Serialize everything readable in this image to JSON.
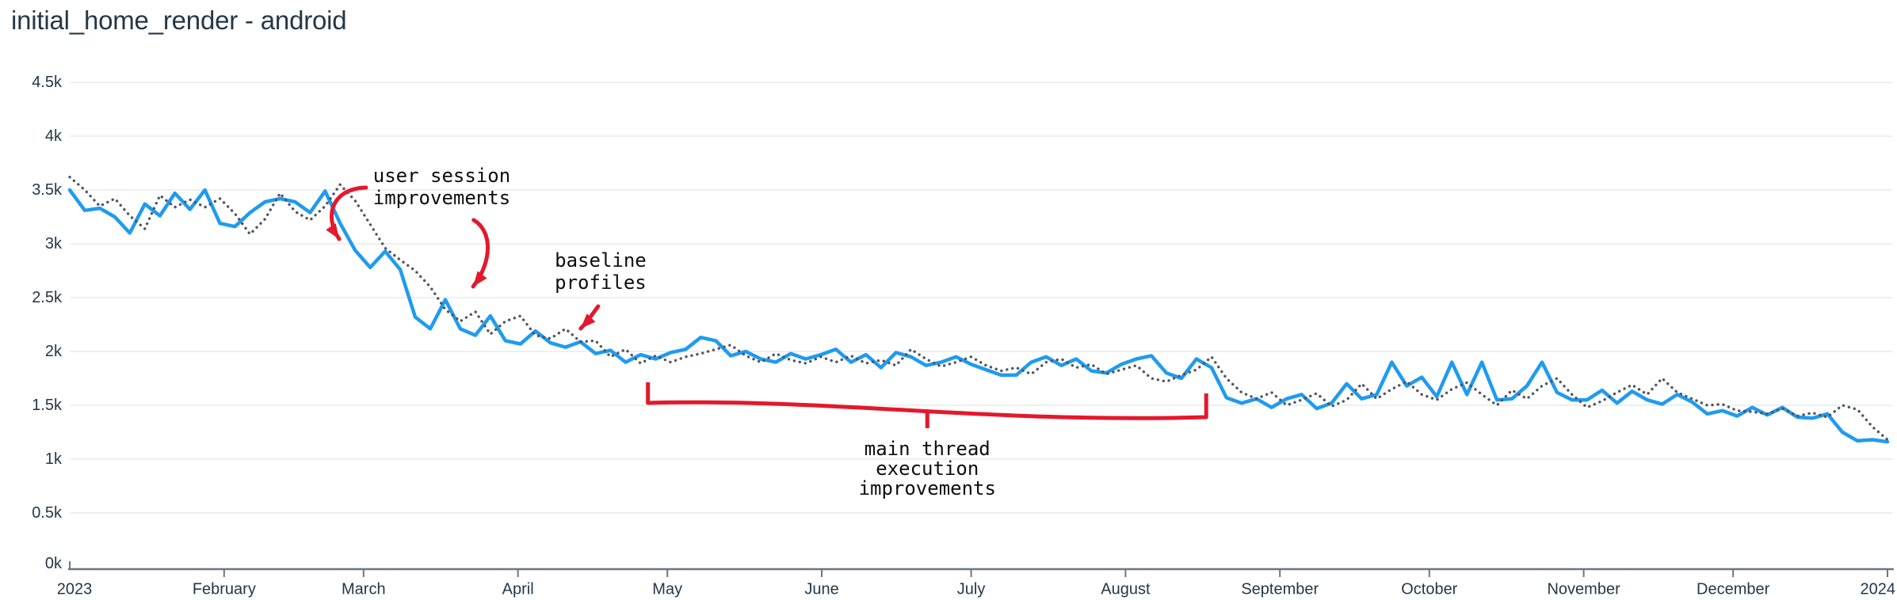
{
  "title": "initial_home_render - android",
  "colors": {
    "title_text": "#253746",
    "axis_label_text": "#243746",
    "gridline": "#e8eaec",
    "axis_line": "#6b7683",
    "solid_line": "#1f9bf0",
    "dotted_line": "#515560",
    "annotation_red": "#e4182c",
    "annotation_text": "#0d0d0d",
    "background": "#ffffff"
  },
  "chart_data": {
    "type": "line",
    "title": "initial_home_render - android",
    "x_axis": {
      "start_label": "2023",
      "end_label": "2024",
      "ticks": [
        {
          "label": "2023",
          "day": 0
        },
        {
          "label": "February",
          "day": 31
        },
        {
          "label": "March",
          "day": 59
        },
        {
          "label": "April",
          "day": 90
        },
        {
          "label": "May",
          "day": 120
        },
        {
          "label": "June",
          "day": 151
        },
        {
          "label": "July",
          "day": 181
        },
        {
          "label": "August",
          "day": 212
        },
        {
          "label": "September",
          "day": 243
        },
        {
          "label": "October",
          "day": 273
        },
        {
          "label": "November",
          "day": 304
        },
        {
          "label": "December",
          "day": 334
        },
        {
          "label": "2024",
          "day": 365
        }
      ]
    },
    "y_axis": {
      "range": [
        0,
        4500
      ],
      "ticks": [
        {
          "label": "4.5k",
          "value": 4500
        },
        {
          "label": "4k",
          "value": 4000
        },
        {
          "label": "3.5k",
          "value": 3500
        },
        {
          "label": "3k",
          "value": 3000
        },
        {
          "label": "2.5k",
          "value": 2500
        },
        {
          "label": "2k",
          "value": 2000
        },
        {
          "label": "1.5k",
          "value": 1500
        },
        {
          "label": "1k",
          "value": 1000
        },
        {
          "label": "0.5k",
          "value": 500
        },
        {
          "label": "0k",
          "value": 0
        }
      ],
      "grid": true
    },
    "legend": "none",
    "sampling": {
      "points": 122,
      "span_days": 365
    },
    "series": [
      {
        "id": "solid-blue-line",
        "style": "solid",
        "color": "#1f9bf0",
        "values": [
          3500,
          3310,
          3330,
          3250,
          3100,
          3370,
          3260,
          3470,
          3320,
          3500,
          3190,
          3160,
          3290,
          3390,
          3420,
          3390,
          3290,
          3490,
          3190,
          2940,
          2780,
          2930,
          2760,
          2320,
          2210,
          2480,
          2210,
          2150,
          2330,
          2100,
          2070,
          2190,
          2080,
          2040,
          2090,
          1980,
          2010,
          1900,
          1970,
          1930,
          1990,
          2020,
          2130,
          2100,
          1960,
          2000,
          1930,
          1900,
          1980,
          1930,
          1970,
          2020,
          1900,
          1970,
          1850,
          1990,
          1950,
          1870,
          1900,
          1950,
          1880,
          1830,
          1780,
          1780,
          1900,
          1950,
          1870,
          1930,
          1820,
          1800,
          1880,
          1930,
          1960,
          1800,
          1750,
          1930,
          1850,
          1570,
          1520,
          1560,
          1480,
          1560,
          1600,
          1470,
          1520,
          1700,
          1560,
          1600,
          1900,
          1680,
          1760,
          1580,
          1900,
          1600,
          1900,
          1550,
          1560,
          1680,
          1900,
          1620,
          1550,
          1550,
          1640,
          1520,
          1630,
          1550,
          1510,
          1600,
          1530,
          1420,
          1450,
          1400,
          1480,
          1410,
          1480,
          1390,
          1380,
          1420,
          1250,
          1170,
          1180,
          1160
        ]
      },
      {
        "id": "dotted-gray-line",
        "style": "dotted",
        "color": "#515560",
        "values": [
          3620,
          3500,
          3350,
          3420,
          3260,
          3140,
          3450,
          3340,
          3410,
          3340,
          3420,
          3280,
          3090,
          3230,
          3470,
          3300,
          3220,
          3350,
          3550,
          3400,
          3180,
          2960,
          2850,
          2750,
          2600,
          2390,
          2280,
          2370,
          2160,
          2280,
          2330,
          2150,
          2120,
          2210,
          2090,
          2100,
          1950,
          2020,
          1890,
          1960,
          1900,
          1950,
          1980,
          2020,
          2060,
          1960,
          1900,
          1980,
          1920,
          1890,
          1950,
          1900,
          1960,
          1890,
          1920,
          1870,
          2020,
          1930,
          1860,
          1900,
          1950,
          1870,
          1820,
          1850,
          1790,
          1900,
          1930,
          1850,
          1880,
          1790,
          1830,
          1870,
          1750,
          1720,
          1780,
          1830,
          1950,
          1750,
          1620,
          1560,
          1620,
          1500,
          1550,
          1610,
          1490,
          1550,
          1700,
          1560,
          1650,
          1720,
          1600,
          1550,
          1650,
          1710,
          1600,
          1500,
          1640,
          1560,
          1680,
          1750,
          1600,
          1480,
          1540,
          1620,
          1690,
          1600,
          1750,
          1620,
          1560,
          1500,
          1510,
          1450,
          1440,
          1420,
          1470,
          1400,
          1430,
          1390,
          1500,
          1460,
          1300,
          1180
        ]
      }
    ],
    "annotations": [
      {
        "id": "user-session-improvements",
        "lines": [
          "user session",
          "improvements"
        ],
        "align": "start",
        "anchor_day": 60.9,
        "line_values": [
          3632,
          3426
        ],
        "arrows": [
          {
            "bezier_day_value": [
              [
                59.5,
                3522
              ],
              [
                52.8,
                3515
              ],
              [
                50.9,
                3265
              ],
              [
                54.1,
                3044
              ]
            ]
          },
          {
            "bezier_day_value": [
              [
                81.1,
                3221
              ],
              [
                84.9,
                3118
              ],
              [
                84.9,
                2838
              ],
              [
                81.0,
                2603
              ]
            ]
          }
        ]
      },
      {
        "id": "baseline-profiles",
        "lines": [
          "baseline",
          "profiles"
        ],
        "align": "start",
        "anchor_day": 97.4,
        "line_values": [
          2846,
          2640
        ],
        "arrows": [
          {
            "bezier_day_value": [
              [
                106.1,
                2419
              ],
              [
                105.0,
                2350
              ],
              [
                104.0,
                2280
              ],
              [
                102.6,
                2213
              ]
            ]
          }
        ]
      },
      {
        "id": "main-thread-execution-improvements",
        "lines": [
          "main thread",
          "execution",
          "improvements"
        ],
        "align": "middle",
        "anchor_day": 172.2,
        "line_values": [
          1096,
          912,
          728
        ],
        "bracket": {
          "left_day": 116.1,
          "right_day": 228.2,
          "top_left_value": 1713,
          "base_left_value": 1522,
          "base_right_value": 1390,
          "top_right_value": 1610,
          "stem_day": 172.2,
          "stem_top_value": 1460,
          "stem_bottom_value": 1287
        }
      }
    ]
  }
}
